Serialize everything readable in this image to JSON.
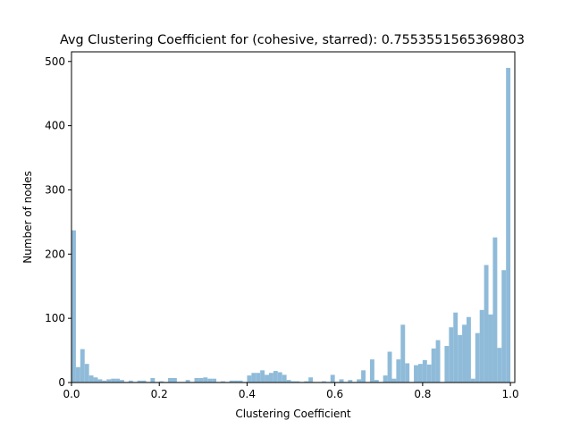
{
  "chart_data": {
    "type": "bar",
    "title": "Avg Clustering Coefficient for (cohesive, starred): 0.7553551565369803",
    "xlabel": "Clustering Coefficient",
    "ylabel": "Number of nodes",
    "xlim": [
      0,
      1.01
    ],
    "ylim": [
      0,
      515
    ],
    "x_ticks": [
      0.0,
      0.2,
      0.4,
      0.6,
      0.8,
      1.0
    ],
    "x_tick_labels": [
      "0.0",
      "0.2",
      "0.4",
      "0.6",
      "0.8",
      "1.0"
    ],
    "y_ticks": [
      0,
      100,
      200,
      300,
      400,
      500
    ],
    "y_tick_labels": [
      "0",
      "100",
      "200",
      "300",
      "400",
      "500"
    ],
    "bin_width": 0.01,
    "bin_start": 0.0,
    "bar_color": "#8fbbd9",
    "grid": false,
    "values": [
      237,
      24,
      52,
      29,
      11,
      8,
      5,
      3,
      5,
      6,
      6,
      4,
      1,
      3,
      1,
      3,
      3,
      1,
      7,
      1,
      2,
      1,
      7,
      7,
      1,
      1,
      4,
      1,
      7,
      7,
      8,
      6,
      6,
      1,
      2,
      1,
      3,
      3,
      3,
      1,
      11,
      15,
      15,
      19,
      12,
      15,
      18,
      16,
      12,
      4,
      2,
      2,
      1,
      2,
      8,
      1,
      1,
      2,
      1,
      12,
      1,
      5,
      1,
      4,
      1,
      5,
      19,
      1,
      36,
      4,
      1,
      11,
      48,
      6,
      36,
      90,
      30,
      1,
      27,
      29,
      35,
      28,
      53,
      66,
      1,
      57,
      86,
      109,
      74,
      90,
      102,
      6,
      77,
      113,
      183,
      106,
      226,
      54,
      175,
      490
    ]
  }
}
